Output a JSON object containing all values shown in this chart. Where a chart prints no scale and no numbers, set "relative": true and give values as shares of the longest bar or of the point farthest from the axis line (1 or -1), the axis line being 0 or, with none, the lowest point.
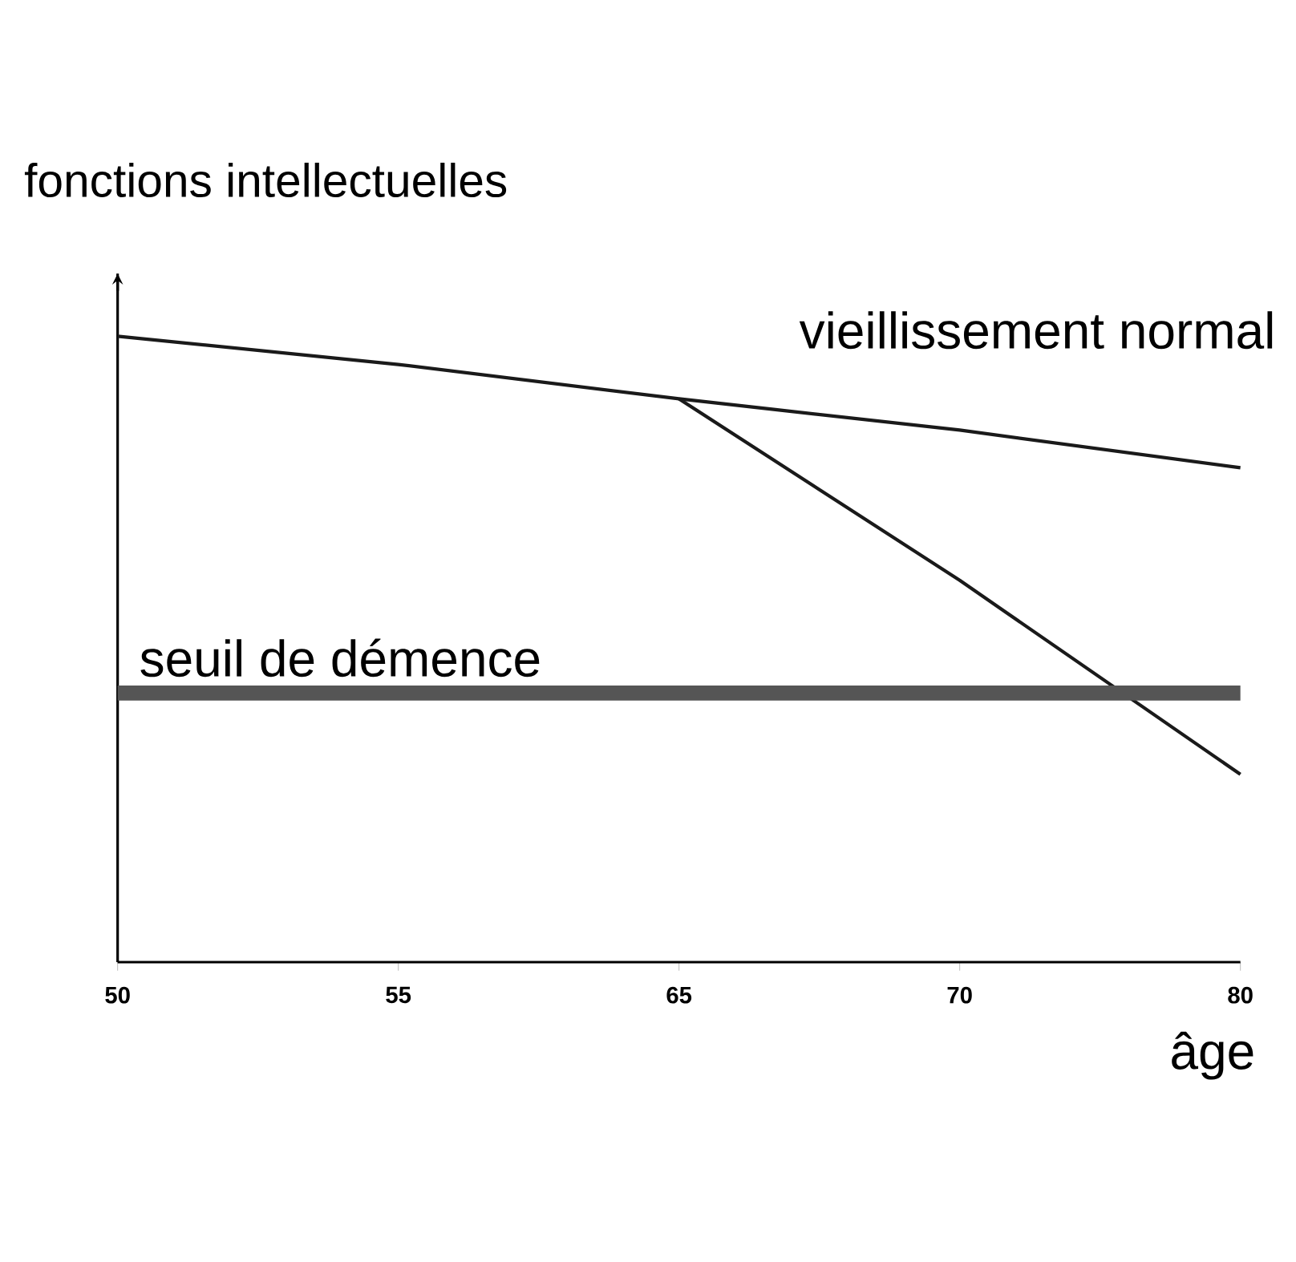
{
  "chart_data": {
    "type": "line",
    "relative": true,
    "ylabel": "fonctions intellectuelles",
    "xlabel": "âge",
    "categories": [
      "50",
      "55",
      "65",
      "70",
      "80"
    ],
    "series": [
      {
        "name": "vieillissement normal",
        "color": "#1a1a1a",
        "values": [
          1,
          0.955,
          0.9,
          0.85,
          0.79
        ]
      },
      {
        "color": "#1a1a1a",
        "values": [
          null,
          null,
          0.9,
          0.61,
          0.3
        ]
      }
    ],
    "ref_lines": [
      {
        "axis": "y",
        "value": 0.43,
        "label": "seuil de démence",
        "color": "#555555"
      }
    ],
    "marker": "none",
    "line_style": "solid",
    "grid": false
  }
}
